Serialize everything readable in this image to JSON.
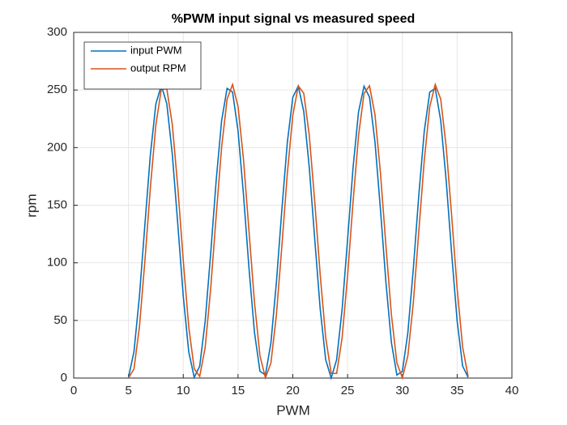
{
  "chart_data": {
    "type": "line",
    "title": "%PWM input signal vs measured speed",
    "x_label": "PWM",
    "y_label": "rpm",
    "x": [
      5,
      5.5,
      6,
      6.5,
      7,
      7.5,
      8,
      8.5,
      9,
      9.5,
      10,
      10.5,
      11,
      11.5,
      12,
      12.5,
      13,
      13.5,
      14,
      14.5,
      15,
      15.5,
      16,
      16.5,
      17,
      17.5,
      18,
      18.5,
      19,
      19.5,
      20,
      20.5,
      21,
      21.5,
      22,
      22.5,
      23,
      23.5,
      24,
      24.5,
      25,
      25.5,
      26,
      26.5,
      27,
      27.5,
      28,
      28.5,
      29,
      29.5,
      30,
      30.5,
      31,
      31.5,
      32,
      32.5,
      33,
      33.5,
      34,
      34.5,
      35,
      35.5,
      36
    ],
    "series": [
      {
        "name": "input PWM",
        "color": "#0072BD",
        "values": [
          0.6,
          22.8,
          71.1,
          133.4,
          194.1,
          238.0,
          254.0,
          238.0,
          194.2,
          133.5,
          71.1,
          22.8,
          0.6,
          10.3,
          49.2,
          107.7,
          171.0,
          223.3,
          251.4,
          248.2,
          214.6,
          158.9,
          95.3,
          39.6,
          5.9,
          2.6,
          30.5,
          82.8,
          146.1,
          204.6,
          243.6,
          253.4,
          231.3,
          183.1,
          120.7,
          60.0,
          16.0,
          0.0,
          15.9,
          59.7,
          120.4,
          182.8,
          231.1,
          253.3,
          243.8,
          204.9,
          146.4,
          83.1,
          30.8,
          2.6,
          5.8,
          39.3,
          94.9,
          158.6,
          214.3,
          248.1,
          251.5,
          223.5,
          171.4,
          108.1,
          49.5,
          10.4,
          0.6
        ]
      },
      {
        "name": "output RPM",
        "color": "#D95319",
        "values": [
          0.0,
          7.9,
          44.4,
          101.8,
          165.6,
          219.8,
          250.9,
          250.9,
          220.0,
          165.7,
          101.9,
          44.5,
          8.0,
          1.5,
          26.6,
          77.2,
          140.3,
          200.3,
          242.0,
          254.8,
          235.7,
          189.5,
          127.6,
          65.7,
          19.4,
          0.2,
          13.0,
          54.6,
          114.5,
          177.6,
          228.2,
          253.5,
          247.1,
          210.7,
          153.3,
          89.5,
          35.3,
          4.1,
          4.0,
          34.9,
          89.1,
          153.0,
          210.4,
          247.0,
          253.6,
          228.5,
          178.0,
          114.8,
          54.9,
          13.1,
          0.2,
          19.2,
          65.4,
          127.2,
          189.1,
          235.6,
          254.8,
          242.1,
          200.6,
          140.7,
          77.5,
          26.9,
          1.5
        ]
      }
    ],
    "xlim": [
      0,
      40
    ],
    "xticks": [
      0,
      5,
      10,
      15,
      20,
      25,
      30,
      35,
      40
    ],
    "ylim": [
      0,
      300
    ],
    "yticks": [
      0,
      50,
      100,
      150,
      200,
      250,
      300
    ],
    "grid": true,
    "legend": "top-left"
  }
}
